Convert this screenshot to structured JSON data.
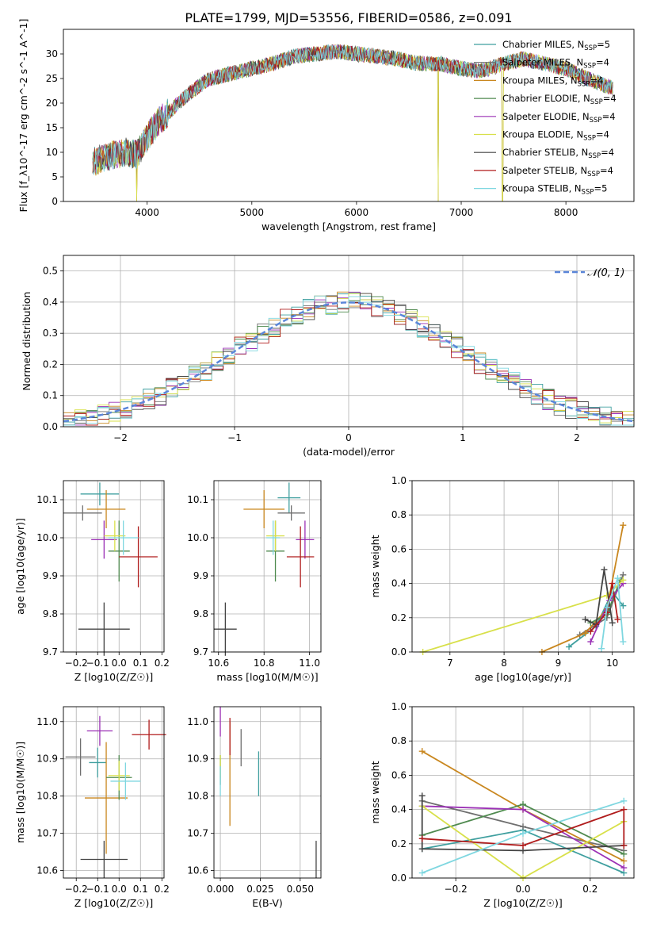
{
  "figure": {
    "title": "PLATE=1799, MJD=53556, FIBERID=0586, z=0.091"
  },
  "series_styles": [
    {
      "name": "Chabrier MILES",
      "nssp": "5",
      "color": "#3f9f9f"
    },
    {
      "name": "Salpeter MILES",
      "nssp": "4",
      "color": "#6f6f6f"
    },
    {
      "name": "Kroupa MILES",
      "nssp": "4",
      "color": "#c9871f"
    },
    {
      "name": "Chabrier ELODIE",
      "nssp": "4",
      "color": "#4f8a4f"
    },
    {
      "name": "Salpeter ELODIE",
      "nssp": "4",
      "color": "#9b30b5"
    },
    {
      "name": "Kroupa ELODIE",
      "nssp": "4",
      "color": "#d8e04a"
    },
    {
      "name": "Chabrier STELIB",
      "nssp": "4",
      "color": "#444444"
    },
    {
      "name": "Salpeter STELIB",
      "nssp": "4",
      "color": "#b01c1c"
    },
    {
      "name": "Kroupa STELIB",
      "nssp": "5",
      "color": "#7fd7e0"
    }
  ],
  "chart_data": [
    {
      "id": "spectrum",
      "type": "line",
      "xlabel": "wavelength [Angstrom, rest frame]",
      "ylabel": "Flux [f_λ10^-17 erg cm^-2 s^-1 A^-1]",
      "xlim": [
        3200,
        8650
      ],
      "ylim": [
        0,
        35
      ],
      "xticks": [
        4000,
        5000,
        6000,
        7000,
        8000
      ],
      "yticks": [
        0,
        5,
        10,
        15,
        20,
        25,
        30
      ],
      "grid": false,
      "legend": "top-right",
      "continuum": [
        [
          3480,
          8
        ],
        [
          3600,
          9
        ],
        [
          3800,
          10
        ],
        [
          3900,
          9.5
        ],
        [
          4000,
          13
        ],
        [
          4100,
          16
        ],
        [
          4200,
          18
        ],
        [
          4400,
          22
        ],
        [
          4600,
          25
        ],
        [
          4800,
          26
        ],
        [
          5000,
          27
        ],
        [
          5200,
          28
        ],
        [
          5400,
          29.5
        ],
        [
          5600,
          30
        ],
        [
          5800,
          30.5
        ],
        [
          6000,
          30
        ],
        [
          6200,
          29.5
        ],
        [
          6400,
          29
        ],
        [
          6600,
          28
        ],
        [
          6800,
          28
        ],
        [
          7000,
          27
        ],
        [
          7200,
          26.5
        ],
        [
          7400,
          28
        ],
        [
          7600,
          29
        ],
        [
          7800,
          28
        ],
        [
          8000,
          27
        ],
        [
          8200,
          25
        ],
        [
          8450,
          23
        ]
      ],
      "dips": [
        {
          "x": 3900,
          "to": 0
        },
        {
          "x": 6780,
          "to": 0
        },
        {
          "x": 7395,
          "to": 0
        }
      ]
    },
    {
      "id": "residuals",
      "type": "histogram",
      "xlabel": "(data-model)/error",
      "ylabel": "Normed distribution",
      "xlim": [
        -2.5,
        2.5
      ],
      "ylim": [
        0,
        0.55
      ],
      "xticks": [
        -2,
        -1,
        0,
        1,
        2
      ],
      "yticks": [
        0.0,
        0.1,
        0.2,
        0.3,
        0.4,
        0.5
      ],
      "grid": true,
      "legend": "top-right",
      "legend_label": "𝒩(0, 1)",
      "bins_start": -2.5,
      "bin_width": 0.1
    },
    {
      "id": "age_vs_Z",
      "type": "errorbar",
      "xlabel": "Z [log10(Z/Z☉)]",
      "ylabel": "age [log10(age/yr)]",
      "xlim": [
        -0.26,
        0.21
      ],
      "ylim": [
        9.7,
        10.15
      ],
      "xticks": [
        -0.2,
        -0.1,
        0.0,
        0.1,
        0.2
      ],
      "yticks": [
        9.7,
        9.8,
        9.9,
        10.0,
        10.1
      ],
      "points": [
        {
          "s": 0,
          "x": -0.09,
          "y": 10.115,
          "xe": 0.09,
          "ye": 0.03
        },
        {
          "s": 1,
          "x": -0.17,
          "y": 10.065,
          "xe": 0.09,
          "ye": 0.02
        },
        {
          "s": 2,
          "x": -0.06,
          "y": 10.075,
          "xe": 0.09,
          "ye": 0.05
        },
        {
          "s": 3,
          "x": 0.0,
          "y": 9.965,
          "xe": 0.05,
          "ye": 0.08
        },
        {
          "s": 4,
          "x": -0.07,
          "y": 9.995,
          "xe": 0.06,
          "ye": 0.05
        },
        {
          "s": 5,
          "x": -0.02,
          "y": 10.005,
          "xe": 0.05,
          "ye": 0.04
        },
        {
          "s": 6,
          "x": -0.07,
          "y": 9.76,
          "xe": 0.12,
          "ye": 0.07
        },
        {
          "s": 7,
          "x": 0.09,
          "y": 9.95,
          "xe": 0.09,
          "ye": 0.08
        },
        {
          "s": 8,
          "x": 0.02,
          "y": 10.0,
          "xe": 0.07,
          "ye": 0.045
        }
      ]
    },
    {
      "id": "age_vs_mass",
      "type": "errorbar",
      "xlabel": "mass [log10(M/M☉)]",
      "ylabel": "",
      "xlim": [
        10.58,
        11.05
      ],
      "ylim": [
        9.7,
        10.15
      ],
      "xticks": [
        10.6,
        10.8,
        11.0
      ],
      "yticks": [
        9.7,
        9.8,
        9.9,
        10.0,
        10.1
      ],
      "points": [
        {
          "s": 0,
          "x": 10.91,
          "y": 10.105,
          "xe": 0.05,
          "ye": 0.04
        },
        {
          "s": 1,
          "x": 10.92,
          "y": 10.065,
          "xe": 0.06,
          "ye": 0.02
        },
        {
          "s": 2,
          "x": 10.8,
          "y": 10.075,
          "xe": 0.09,
          "ye": 0.05
        },
        {
          "s": 3,
          "x": 10.85,
          "y": 9.965,
          "xe": 0.04,
          "ye": 0.08
        },
        {
          "s": 4,
          "x": 10.98,
          "y": 9.995,
          "xe": 0.04,
          "ye": 0.05
        },
        {
          "s": 5,
          "x": 10.85,
          "y": 10.005,
          "xe": 0.04,
          "ye": 0.04
        },
        {
          "s": 6,
          "x": 10.63,
          "y": 9.76,
          "xe": 0.05,
          "ye": 0.07
        },
        {
          "s": 7,
          "x": 10.96,
          "y": 9.95,
          "xe": 0.06,
          "ye": 0.08
        },
        {
          "s": 8,
          "x": 10.84,
          "y": 10.0,
          "xe": 0.03,
          "ye": 0.045
        }
      ]
    },
    {
      "id": "weight_vs_age",
      "type": "line",
      "xlabel": "age [log10(age/yr)]",
      "ylabel": "mass weight",
      "xlim": [
        6.3,
        10.4
      ],
      "ylim": [
        0.0,
        1.0
      ],
      "xticks": [
        7,
        8,
        9,
        10
      ],
      "yticks": [
        0.0,
        0.2,
        0.4,
        0.6,
        0.8,
        1.0
      ],
      "grid": true,
      "lines": [
        {
          "s": 0,
          "pts": [
            [
              9.2,
              0.03
            ],
            [
              9.7,
              0.15
            ],
            [
              10.0,
              0.35
            ],
            [
              10.2,
              0.27
            ]
          ]
        },
        {
          "s": 1,
          "pts": [
            [
              9.4,
              0.1
            ],
            [
              9.9,
              0.2
            ],
            [
              10.2,
              0.45
            ]
          ]
        },
        {
          "s": 2,
          "pts": [
            [
              8.7,
              0.0
            ],
            [
              9.5,
              0.11
            ],
            [
              9.9,
              0.25
            ],
            [
              10.2,
              0.74
            ]
          ]
        },
        {
          "s": 3,
          "pts": [
            [
              9.6,
              0.17
            ],
            [
              9.9,
              0.22
            ],
            [
              10.15,
              0.42
            ]
          ]
        },
        {
          "s": 4,
          "pts": [
            [
              9.6,
              0.06
            ],
            [
              9.95,
              0.3
            ],
            [
              10.2,
              0.4
            ]
          ]
        },
        {
          "s": 5,
          "pts": [
            [
              6.5,
              0.0
            ],
            [
              9.9,
              0.33
            ],
            [
              10.2,
              0.42
            ]
          ]
        },
        {
          "s": 6,
          "pts": [
            [
              9.5,
              0.19
            ],
            [
              9.7,
              0.16
            ],
            [
              9.85,
              0.48
            ],
            [
              10.0,
              0.17
            ]
          ]
        },
        {
          "s": 7,
          "pts": [
            [
              9.6,
              0.12
            ],
            [
              9.9,
              0.23
            ],
            [
              10.0,
              0.4
            ],
            [
              10.1,
              0.19
            ]
          ]
        },
        {
          "s": 8,
          "pts": [
            [
              9.8,
              0.02
            ],
            [
              9.9,
              0.26
            ],
            [
              10.1,
              0.43
            ],
            [
              10.2,
              0.06
            ]
          ]
        }
      ]
    },
    {
      "id": "mass_vs_Z",
      "type": "errorbar",
      "xlabel": "Z [log10(Z/Z☉)]",
      "ylabel": "mass [log10(M/M☉)]",
      "xlim": [
        -0.26,
        0.21
      ],
      "ylim": [
        10.58,
        11.04
      ],
      "xticks": [
        -0.2,
        -0.1,
        0.0,
        0.1,
        0.2
      ],
      "yticks": [
        10.6,
        10.7,
        10.8,
        10.9,
        11.0
      ],
      "points": [
        {
          "s": 0,
          "x": -0.1,
          "y": 10.89,
          "xe": 0.04,
          "ye": 0.04
        },
        {
          "s": 1,
          "x": -0.18,
          "y": 10.905,
          "xe": 0.07,
          "ye": 0.05
        },
        {
          "s": 2,
          "x": -0.06,
          "y": 10.795,
          "xe": 0.1,
          "ye": 0.15
        },
        {
          "s": 3,
          "x": 0.0,
          "y": 10.85,
          "xe": 0.06,
          "ye": 0.06
        },
        {
          "s": 4,
          "x": -0.09,
          "y": 10.975,
          "xe": 0.06,
          "ye": 0.04
        },
        {
          "s": 5,
          "x": 0.0,
          "y": 10.855,
          "xe": 0.05,
          "ye": 0.04
        },
        {
          "s": 6,
          "x": -0.07,
          "y": 10.63,
          "xe": 0.11,
          "ye": 0.05
        },
        {
          "s": 7,
          "x": 0.14,
          "y": 10.965,
          "xe": 0.08,
          "ye": 0.04
        },
        {
          "s": 8,
          "x": 0.03,
          "y": 10.84,
          "xe": 0.07,
          "ye": 0.05
        }
      ]
    },
    {
      "id": "mass_vs_EBV",
      "type": "errorbar",
      "xlabel": "E(B-V)",
      "ylabel": "",
      "xlim": [
        -0.004,
        0.063
      ],
      "ylim": [
        10.58,
        11.04
      ],
      "xticks": [
        0.0,
        0.025,
        0.05
      ],
      "yticks": [
        10.6,
        10.7,
        10.8,
        10.9,
        11.0
      ],
      "points": [
        {
          "s": 0,
          "x": 0.024,
          "y": 10.86,
          "xe": 0,
          "ye": 0.06
        },
        {
          "s": 1,
          "x": 0.013,
          "y": 10.93,
          "xe": 0,
          "ye": 0.05
        },
        {
          "s": 2,
          "x": 0.006,
          "y": 10.86,
          "xe": 0,
          "ye": 0.14
        },
        {
          "s": 3,
          "x": 0.0,
          "y": 10.87,
          "xe": 0,
          "ye": 0.04
        },
        {
          "s": 4,
          "x": 0.0,
          "y": 11.0,
          "xe": 0,
          "ye": 0.04
        },
        {
          "s": 5,
          "x": 0.0,
          "y": 10.88,
          "xe": 0,
          "ye": 0.03
        },
        {
          "s": 6,
          "x": 0.06,
          "y": 10.63,
          "xe": 0,
          "ye": 0.05
        },
        {
          "s": 7,
          "x": 0.006,
          "y": 10.96,
          "xe": 0,
          "ye": 0.05
        },
        {
          "s": 8,
          "x": 0.0,
          "y": 10.84,
          "xe": 0,
          "ye": 0.04
        }
      ]
    },
    {
      "id": "weight_vs_Z",
      "type": "line",
      "xlabel": "Z [log10(Z/Z☉)]",
      "ylabel": "mass weight",
      "xlim": [
        -0.33,
        0.33
      ],
      "ylim": [
        0.0,
        1.0
      ],
      "xticks": [
        -0.2,
        0.0,
        0.2
      ],
      "yticks": [
        0.0,
        0.2,
        0.4,
        0.6,
        0.8,
        1.0
      ],
      "grid": true,
      "lines": [
        {
          "s": 0,
          "pts": [
            [
              -0.3,
              0.17
            ],
            [
              0.0,
              0.28
            ],
            [
              0.3,
              0.03
            ]
          ]
        },
        {
          "s": 1,
          "pts": [
            [
              -0.3,
              0.45
            ],
            [
              0.0,
              0.3
            ],
            [
              0.3,
              0.16
            ]
          ]
        },
        {
          "s": 2,
          "pts": [
            [
              -0.3,
              0.74
            ],
            [
              0.0,
              0.4
            ],
            [
              0.3,
              0.1
            ]
          ]
        },
        {
          "s": 3,
          "pts": [
            [
              -0.3,
              0.25
            ],
            [
              0.0,
              0.43
            ],
            [
              0.3,
              0.14
            ]
          ]
        },
        {
          "s": 4,
          "pts": [
            [
              -0.3,
              0.42
            ],
            [
              0.0,
              0.4
            ],
            [
              0.3,
              0.06
            ]
          ]
        },
        {
          "s": 5,
          "pts": [
            [
              -0.3,
              0.42
            ],
            [
              0.0,
              0.0
            ],
            [
              0.3,
              0.33
            ]
          ]
        },
        {
          "s": 6,
          "pts": [
            [
              -0.3,
              0.48
            ],
            [
              -0.3,
              0.17
            ],
            [
              0.0,
              0.16
            ],
            [
              0.3,
              0.19
            ]
          ]
        },
        {
          "s": 7,
          "pts": [
            [
              -0.3,
              0.23
            ],
            [
              0.0,
              0.19
            ],
            [
              0.3,
              0.4
            ],
            [
              0.3,
              0.19
            ]
          ]
        },
        {
          "s": 8,
          "pts": [
            [
              -0.3,
              0.03
            ],
            [
              0.0,
              0.26
            ],
            [
              0.3,
              0.45
            ]
          ]
        }
      ]
    }
  ]
}
